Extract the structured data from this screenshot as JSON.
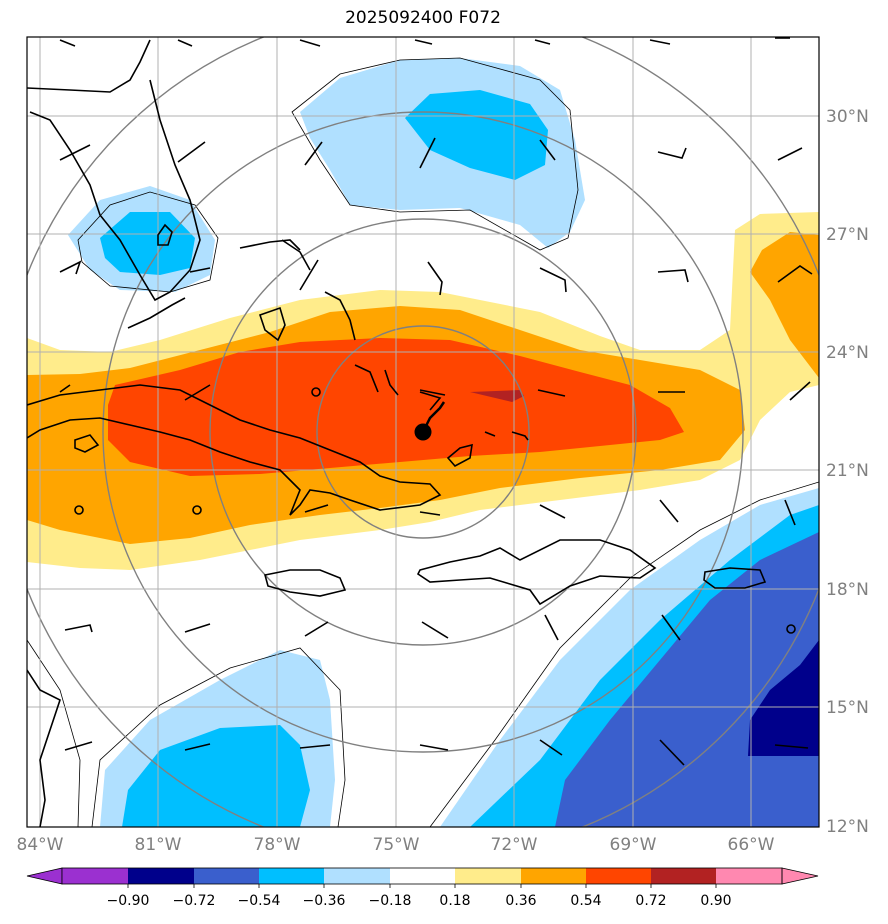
{
  "title": "2025092400 F072",
  "map": {
    "lon_range": [
      -84,
      -64.8
    ],
    "lat_range": [
      12,
      32
    ],
    "lon_labels": [
      "84°W",
      "81°W",
      "78°W",
      "75°W",
      "72°W",
      "69°W",
      "66°W"
    ],
    "lat_labels": [
      "12°N",
      "15°N",
      "18°N",
      "21°N",
      "24°N",
      "27°N",
      "30°N"
    ],
    "center_marker": {
      "lon": -73.7,
      "lat": 22.0
    }
  },
  "colorbar": {
    "ticks": [
      "−0.90",
      "−0.72",
      "−0.54",
      "−0.36",
      "−0.18",
      "0.18",
      "0.36",
      "0.54",
      "0.72",
      "0.90"
    ],
    "colors": [
      "#9b30d0",
      "#00008b",
      "#3a5fcd",
      "#00bfff",
      "#b0e0ff",
      "#ffffff",
      "#ffec8b",
      "#ffa500",
      "#ff4500",
      "#b22222",
      "#ff88b0"
    ]
  }
}
